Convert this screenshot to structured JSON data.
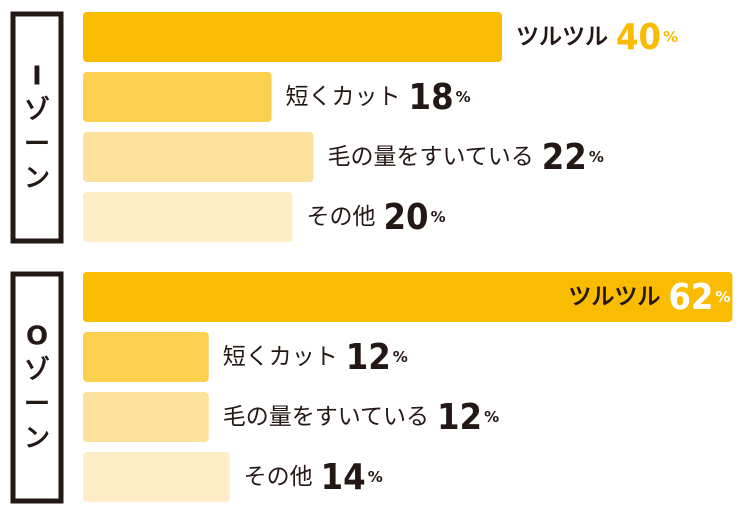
{
  "chart_data": [
    {
      "type": "bar",
      "zone": "Iゾーン",
      "categories": [
        "ツルツル",
        "短くカット",
        "毛の量をすいている",
        "その他"
      ],
      "values": [
        40,
        18,
        22,
        20
      ],
      "unit": "%"
    },
    {
      "type": "bar",
      "zone": "Oゾーン",
      "categories": [
        "ツルツル",
        "短くカット",
        "毛の量をすいている",
        "その他"
      ],
      "values": [
        62,
        12,
        12,
        14
      ],
      "unit": "%"
    }
  ],
  "colors": {
    "bar": [
      "#F9BC00",
      "#FBD04E",
      "#FCE29D",
      "#FEEDC6"
    ],
    "highlight_text": "#F9BC00",
    "inside_text": "#FFFFFF",
    "text": "#231815",
    "frame": "#231815"
  }
}
